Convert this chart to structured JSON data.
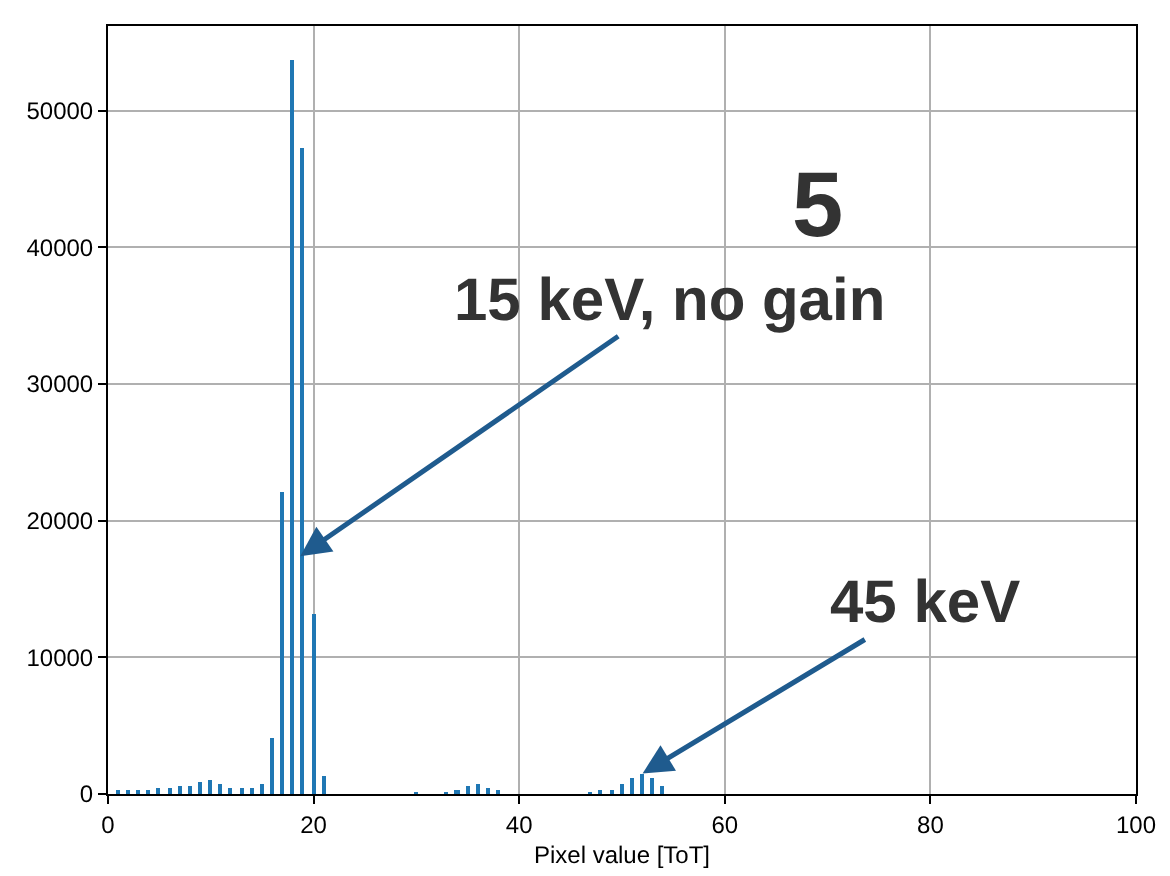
{
  "chart_data": {
    "type": "bar",
    "xlabel": "Pixel value [ToT]",
    "x": [
      1,
      2,
      3,
      4,
      5,
      6,
      7,
      8,
      9,
      10,
      11,
      12,
      13,
      14,
      15,
      16,
      17,
      18,
      19,
      20,
      21,
      30,
      33,
      34,
      35,
      36,
      37,
      38,
      47,
      48,
      49,
      50,
      51,
      52,
      53,
      54
    ],
    "series": [
      {
        "color": "#1f77b4",
        "values": [
          200,
          200,
          300,
          300,
          400,
          500,
          600,
          600,
          900,
          1000,
          700,
          500,
          400,
          400,
          800,
          4100,
          22100,
          53700,
          47200,
          13200,
          1300,
          100,
          100,
          300,
          600,
          700,
          400,
          200,
          100,
          200,
          300,
          700,
          1200,
          1500,
          1200,
          600
        ]
      }
    ],
    "xlim": [
      0,
      100
    ],
    "xticks": [
      0,
      20,
      40,
      60,
      80,
      100
    ],
    "ylim": [
      0,
      56200
    ],
    "yticks": [
      0,
      10000,
      20000,
      30000,
      40000,
      50000
    ],
    "grid": true,
    "annotations": [
      "5",
      {
        "text": "15 keV, no gain",
        "x": 18.7,
        "y": 17400
      },
      {
        "text": "45 keV",
        "x": 52,
        "y": 1500
      }
    ]
  }
}
